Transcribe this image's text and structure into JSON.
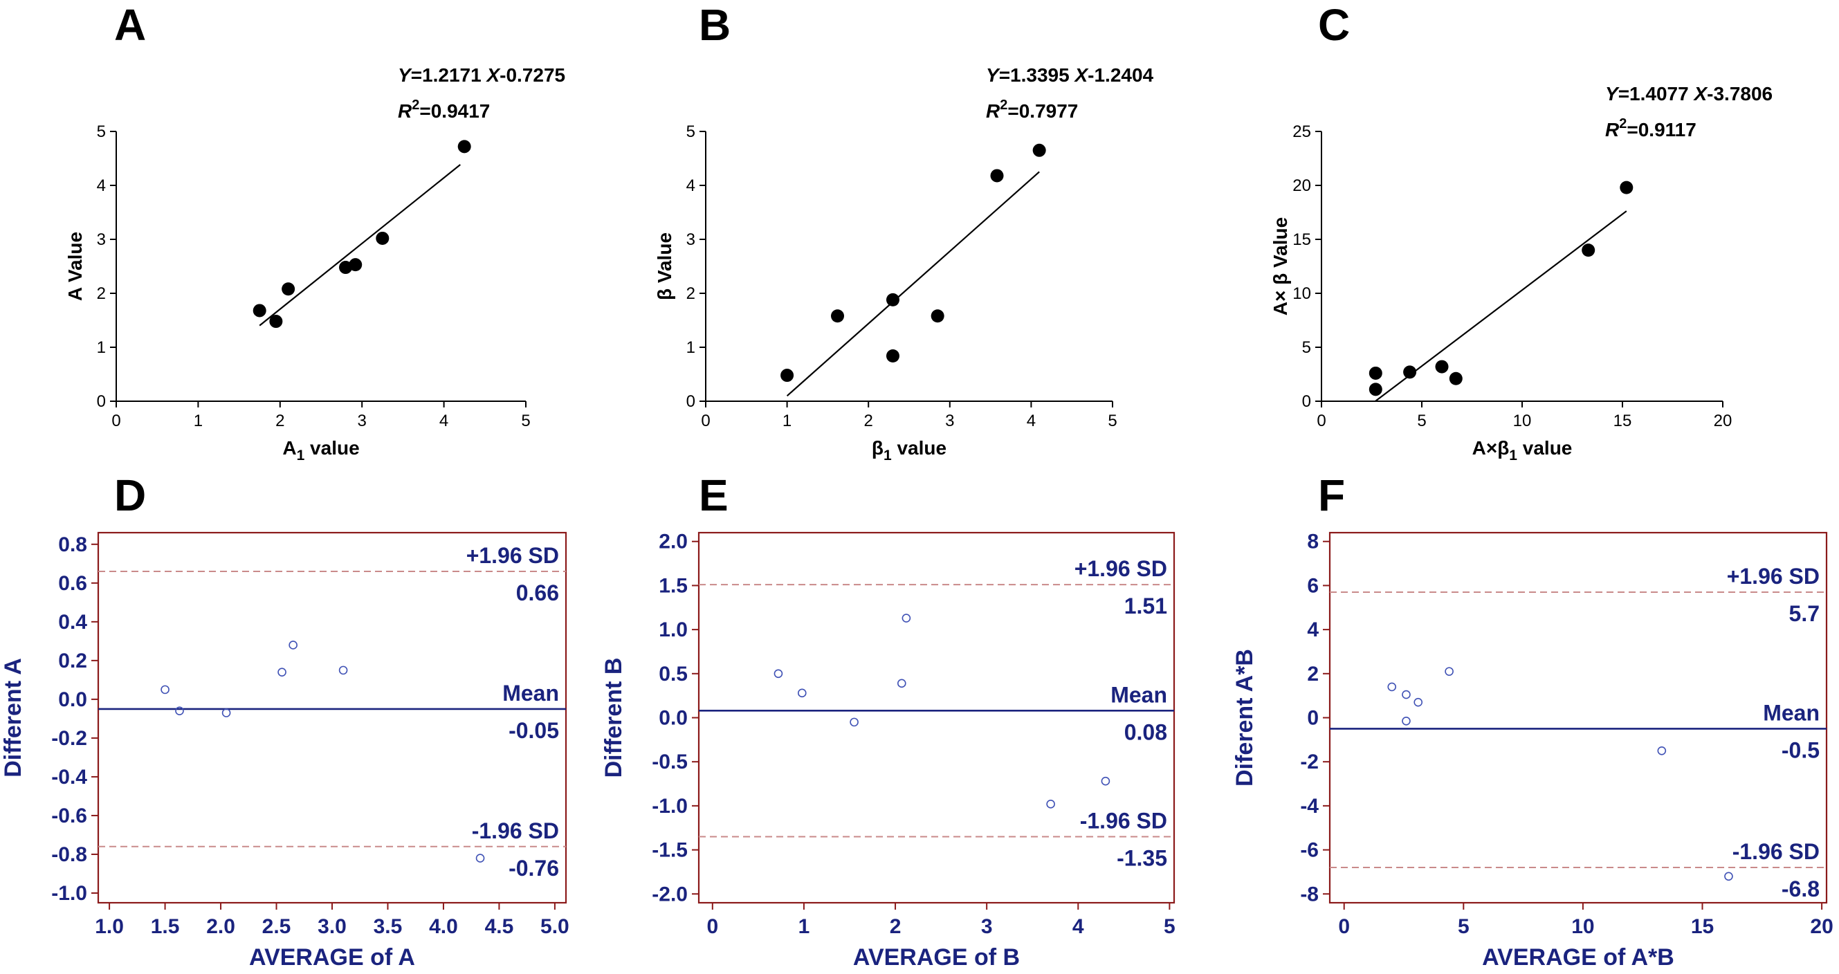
{
  "chart_data": [
    {
      "id": "A",
      "type": "scatter",
      "panel_label": "A",
      "xlabel_main": "A",
      "xlabel_sub": "1",
      "xlabel_suffix": " value",
      "ylabel": "A Value",
      "xlim": [
        0,
        5
      ],
      "ylim": [
        0,
        5
      ],
      "xticks": [
        "0",
        "1",
        "2",
        "3",
        "4",
        "5"
      ],
      "yticks": [
        "0",
        "1",
        "2",
        "3",
        "4",
        "5"
      ],
      "points": [
        [
          1.75,
          1.68
        ],
        [
          1.95,
          1.48
        ],
        [
          2.1,
          2.08
        ],
        [
          2.8,
          2.48
        ],
        [
          2.92,
          2.53
        ],
        [
          3.25,
          3.02
        ],
        [
          4.25,
          4.72
        ]
      ],
      "fit": {
        "slope": 1.2171,
        "intercept": -0.7275,
        "x_range": [
          1.75,
          4.2
        ]
      },
      "equation": {
        "lhs": "Y",
        "rhs_a": "=1.2171 ",
        "xvar": "X",
        "rhs_b": "-0.7275",
        "r2_label": "R",
        "r2_sup": "2",
        "r2_value": "=0.9417"
      }
    },
    {
      "id": "B",
      "type": "scatter",
      "panel_label": "B",
      "xlabel_main": "β",
      "xlabel_sub": "1",
      "xlabel_suffix": " value",
      "ylabel": "β  Value",
      "xlim": [
        0,
        5
      ],
      "ylim": [
        0,
        5
      ],
      "xticks": [
        "0",
        "1",
        "2",
        "3",
        "4",
        "5"
      ],
      "yticks": [
        "0",
        "1",
        "2",
        "3",
        "4",
        "5"
      ],
      "points": [
        [
          1.0,
          0.48
        ],
        [
          1.62,
          1.58
        ],
        [
          2.3,
          1.88
        ],
        [
          2.3,
          0.84
        ],
        [
          2.85,
          1.58
        ],
        [
          3.58,
          4.18
        ],
        [
          4.1,
          4.65
        ]
      ],
      "fit": {
        "slope": 1.3395,
        "intercept": -1.2404,
        "x_range": [
          1.0,
          4.1
        ]
      },
      "equation": {
        "lhs": "Y",
        "rhs_a": "=1.3395 ",
        "xvar": "X",
        "rhs_b": "-1.2404",
        "r2_label": "R",
        "r2_sup": "2",
        "r2_value": "=0.7977"
      }
    },
    {
      "id": "C",
      "type": "scatter",
      "panel_label": "C",
      "xlabel_main": "A×β",
      "xlabel_sub": "1",
      "xlabel_suffix": " value",
      "ylabel": "A× β  Value",
      "xlim": [
        0,
        20
      ],
      "ylim": [
        0,
        25
      ],
      "xticks": [
        "0",
        "5",
        "10",
        "15",
        "20"
      ],
      "yticks": [
        "0",
        "5",
        "10",
        "15",
        "20",
        "25"
      ],
      "points": [
        [
          2.7,
          1.1
        ],
        [
          2.7,
          2.6
        ],
        [
          4.4,
          2.7
        ],
        [
          6.0,
          3.2
        ],
        [
          6.7,
          2.1
        ],
        [
          13.3,
          14.0
        ],
        [
          15.2,
          19.8
        ]
      ],
      "fit": {
        "slope": 1.4077,
        "intercept": -3.7806,
        "x_range": [
          2.7,
          15.2
        ]
      },
      "equation": {
        "lhs": "Y",
        "rhs_a": "=1.4077 ",
        "xvar": "X",
        "rhs_b": "-3.7806",
        "r2_label": "R",
        "r2_sup": "2",
        "r2_value": "=0.9117"
      }
    },
    {
      "id": "D",
      "type": "scatter",
      "panel_label": "D",
      "xlabel": "AVERAGE of A",
      "ylabel": "Different A",
      "xlim": [
        0.9,
        5.1
      ],
      "ylim": [
        -1.05,
        0.86
      ],
      "xtick_values": [
        1.0,
        1.5,
        2.0,
        2.5,
        3.0,
        3.5,
        4.0,
        4.5,
        5.0
      ],
      "xticks": [
        "1.0",
        "1.5",
        "2.0",
        "2.5",
        "3.0",
        "3.5",
        "4.0",
        "4.5",
        "5.0"
      ],
      "ytick_values": [
        -1.0,
        -0.8,
        -0.6,
        -0.4,
        -0.2,
        0.0,
        0.2,
        0.4,
        0.6,
        0.8
      ],
      "yticks": [
        "-1.0",
        "-0.8",
        "-0.6",
        "-0.4",
        "-0.2",
        "0.0",
        "0.2",
        "0.4",
        "0.6",
        "0.8"
      ],
      "points": [
        [
          1.5,
          0.05
        ],
        [
          1.63,
          -0.06
        ],
        [
          2.05,
          -0.07
        ],
        [
          2.55,
          0.14
        ],
        [
          2.65,
          0.28
        ],
        [
          3.1,
          0.15
        ],
        [
          4.33,
          -0.82
        ]
      ],
      "mean": -0.05,
      "upper": 0.66,
      "lower": -0.76,
      "upper_label": "+1.96 SD",
      "upper_value": "0.66",
      "mean_label": "Mean",
      "mean_value": "-0.05",
      "lower_label": "-1.96 SD",
      "lower_value": "-0.76"
    },
    {
      "id": "E",
      "type": "scatter",
      "panel_label": "E",
      "xlabel": "AVERAGE of B",
      "ylabel": "Different B",
      "xlim": [
        -0.15,
        5.05
      ],
      "ylim": [
        -2.1,
        2.1
      ],
      "xtick_values": [
        0,
        1,
        2,
        3,
        4,
        5
      ],
      "xticks": [
        "0",
        "1",
        "2",
        "3",
        "4",
        "5"
      ],
      "ytick_values": [
        -2.0,
        -1.5,
        -1.0,
        -0.5,
        0.0,
        0.5,
        1.0,
        1.5,
        2.0
      ],
      "yticks": [
        "-2.0",
        "-1.5",
        "-1.0",
        "-0.5",
        "0.0",
        "0.5",
        "1.0",
        "1.5",
        "2.0"
      ],
      "points": [
        [
          0.72,
          0.5
        ],
        [
          0.98,
          0.28
        ],
        [
          1.55,
          -0.05
        ],
        [
          2.07,
          0.39
        ],
        [
          2.12,
          1.13
        ],
        [
          3.7,
          -0.98
        ],
        [
          4.3,
          -0.72
        ]
      ],
      "mean": 0.08,
      "upper": 1.51,
      "lower": -1.35,
      "upper_label": "+1.96 SD",
      "upper_value": "1.51",
      "mean_label": "Mean",
      "mean_value": "0.08",
      "lower_label": "-1.96 SD",
      "lower_value": "-1.35"
    },
    {
      "id": "F",
      "type": "scatter",
      "panel_label": "F",
      "xlabel": "AVERAGE of A*B",
      "ylabel": "Diferent  A*B",
      "xlim": [
        -0.6,
        20.2
      ],
      "ylim": [
        -8.4,
        8.4
      ],
      "xtick_values": [
        0,
        5,
        10,
        15,
        20
      ],
      "xticks": [
        "0",
        "5",
        "10",
        "15",
        "20"
      ],
      "ytick_values": [
        -8,
        -6,
        -4,
        -2,
        0,
        2,
        4,
        6,
        8
      ],
      "yticks": [
        "-8",
        "-6",
        "-4",
        "-2",
        "0",
        "2",
        "4",
        "6",
        "8"
      ],
      "points": [
        [
          2.0,
          1.4
        ],
        [
          2.6,
          1.05
        ],
        [
          2.6,
          -0.15
        ],
        [
          3.1,
          0.7
        ],
        [
          4.4,
          2.1
        ],
        [
          13.3,
          -1.5
        ],
        [
          16.1,
          -7.2
        ]
      ],
      "mean": -0.5,
      "upper": 5.7,
      "lower": -6.8,
      "upper_label": "+1.96 SD",
      "upper_value": "5.7",
      "mean_label": "Mean",
      "mean_value": "-0.5",
      "lower_label": "-1.96 SD",
      "lower_value": "-6.8"
    }
  ]
}
